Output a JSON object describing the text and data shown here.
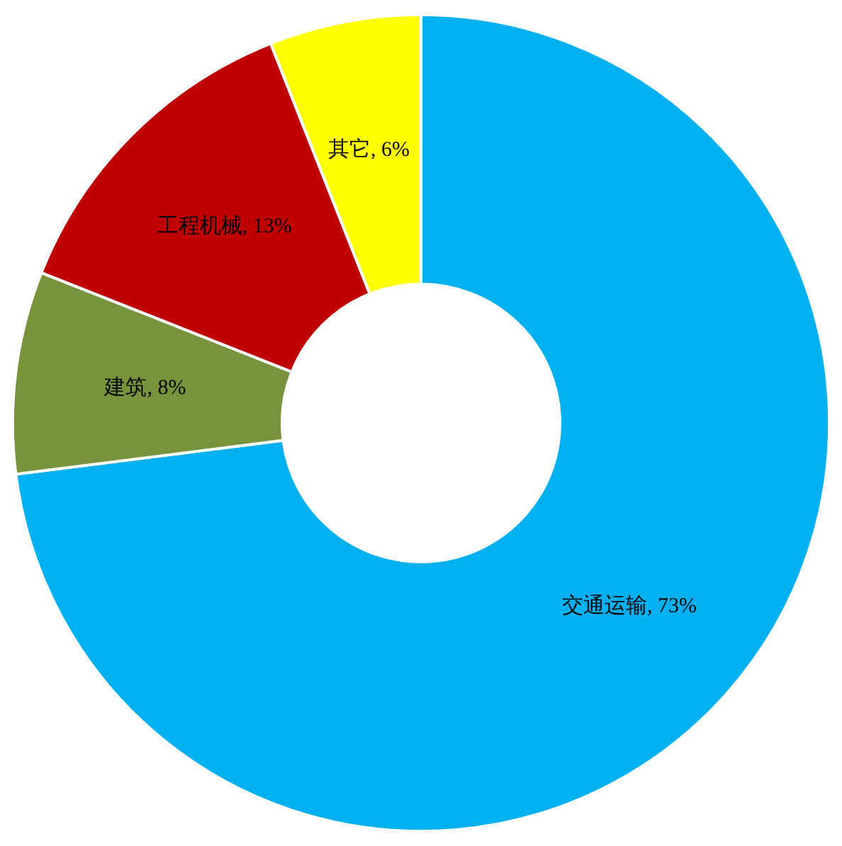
{
  "chart_data": {
    "type": "donut",
    "categories": [
      "交通运输",
      "建筑",
      "工程机械",
      "其它"
    ],
    "values": [
      73,
      8,
      13,
      6
    ],
    "value_labels": [
      "73%",
      "8%",
      "13%",
      "6%"
    ],
    "colors": [
      "#00b0f0",
      "#77933c",
      "#c00000",
      "#ffff00"
    ],
    "legend": false
  }
}
